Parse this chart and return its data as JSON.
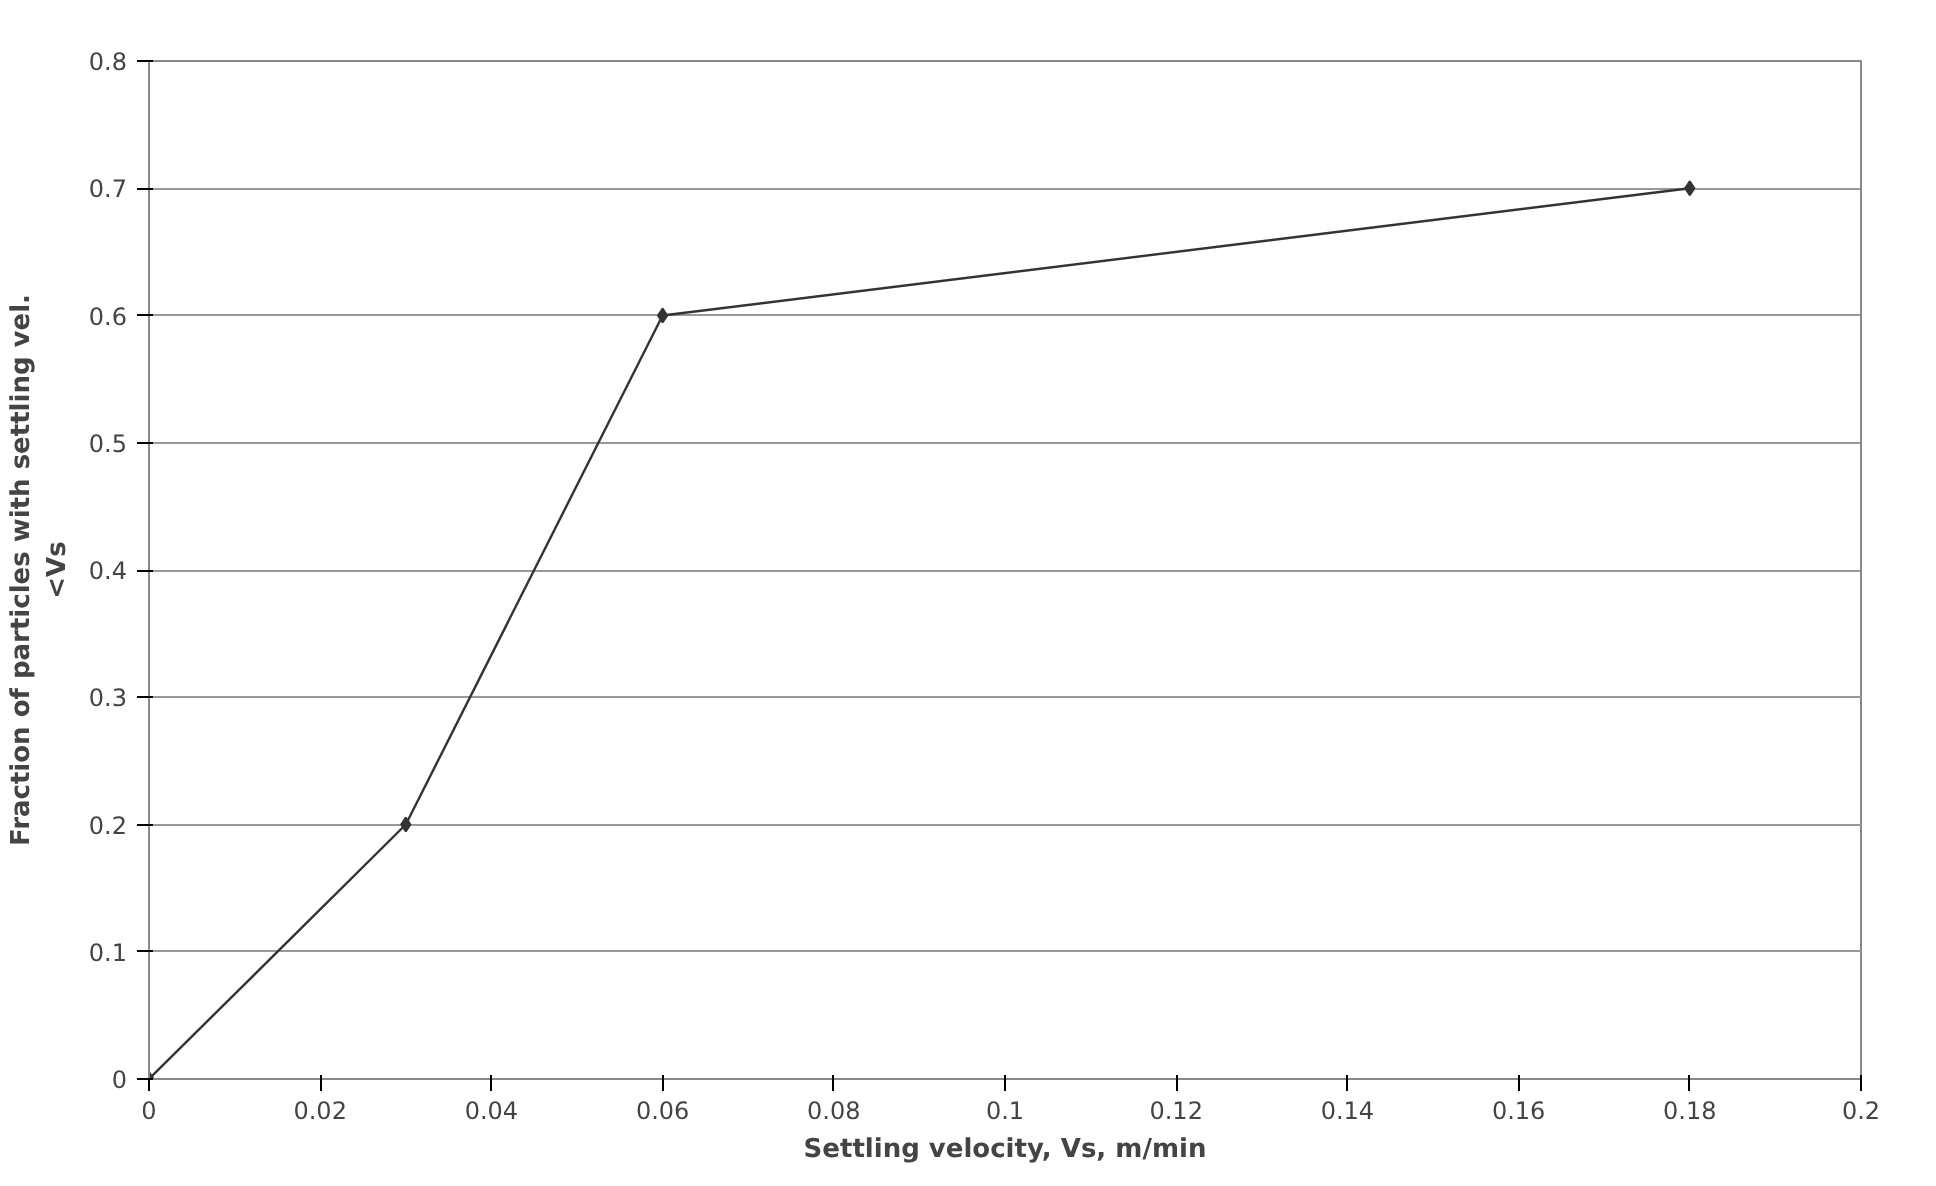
{
  "chart_data": {
    "type": "line",
    "xlabel": "Settling velocity, Vs, m/min",
    "ylabel": "Fraction of particles with settling vel. <Vs",
    "x": [
      0,
      0.03,
      0.06,
      0.18
    ],
    "series": [
      {
        "color": "#333333",
        "values": [
          0,
          0.2,
          0.6,
          0.7
        ]
      }
    ],
    "xlim": [
      0,
      0.2
    ],
    "xticks": [
      0,
      0.02,
      0.04,
      0.06,
      0.08,
      0.1,
      0.12,
      0.14,
      0.16,
      0.18,
      0.2
    ],
    "ylim": [
      0,
      0.8
    ],
    "yticks": [
      0,
      0.1,
      0.2,
      0.3,
      0.4,
      0.5,
      0.6,
      0.7,
      0.8
    ],
    "grid": "y",
    "marker": "diamond",
    "line_style": "solid"
  }
}
